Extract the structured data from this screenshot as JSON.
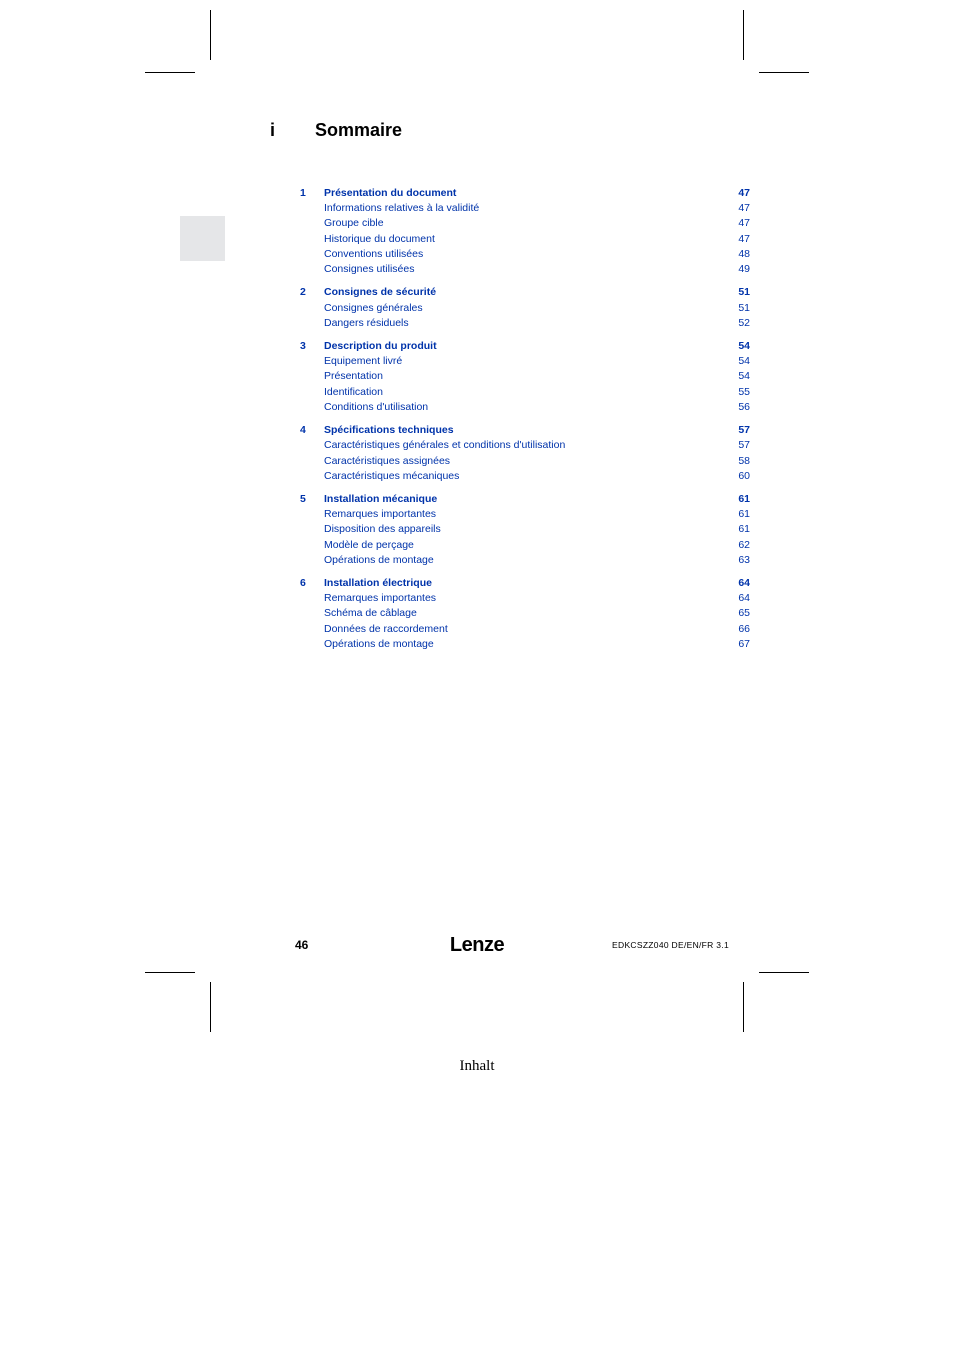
{
  "header": {
    "section_marker": "i",
    "title": "Sommaire"
  },
  "toc": [
    {
      "num": "1",
      "title": "Présentation du document",
      "page": "47",
      "items": [
        {
          "title": "Informations relatives à la validité",
          "page": "47"
        },
        {
          "title": "Groupe cible",
          "page": "47"
        },
        {
          "title": "Historique du document",
          "page": "47"
        },
        {
          "title": "Conventions utilisées",
          "page": "48"
        },
        {
          "title": "Consignes utilisées",
          "page": "49"
        }
      ]
    },
    {
      "num": "2",
      "title": "Consignes de sécurité",
      "page": "51",
      "items": [
        {
          "title": "Consignes générales",
          "page": "51"
        },
        {
          "title": "Dangers résiduels",
          "page": "52"
        }
      ]
    },
    {
      "num": "3",
      "title": "Description du produit",
      "page": "54",
      "items": [
        {
          "title": "Equipement livré",
          "page": "54"
        },
        {
          "title": "Présentation",
          "page": "54"
        },
        {
          "title": "Identification",
          "page": "55"
        },
        {
          "title": "Conditions d'utilisation",
          "page": "56"
        }
      ]
    },
    {
      "num": "4",
      "title": "Spécifications techniques",
      "page": "57",
      "items": [
        {
          "title": "Caractéristiques générales et conditions d'utilisation",
          "page": "57"
        },
        {
          "title": "Caractéristiques assignées",
          "page": "58"
        },
        {
          "title": "Caractéristiques mécaniques",
          "page": "60"
        }
      ]
    },
    {
      "num": "5",
      "title": "Installation mécanique",
      "page": "61",
      "items": [
        {
          "title": "Remarques importantes",
          "page": "61"
        },
        {
          "title": "Disposition des appareils",
          "page": "61"
        },
        {
          "title": "Modèle de perçage",
          "page": "62"
        },
        {
          "title": "Opérations de montage",
          "page": "63"
        }
      ]
    },
    {
      "num": "6",
      "title": "Installation électrique",
      "page": "64",
      "items": [
        {
          "title": "Remarques importantes",
          "page": "64"
        },
        {
          "title": "Schéma de câblage",
          "page": "65"
        },
        {
          "title": "Données de raccordement",
          "page": "66"
        },
        {
          "title": "Opérations de montage",
          "page": "67"
        }
      ]
    }
  ],
  "footer": {
    "page_number": "46",
    "brand": "Lenze",
    "doc_code": "EDKCSZZ040   DE/EN/FR   3.1"
  },
  "caption": "Inhalt",
  "colors": {
    "link": "#0033aa",
    "text": "#000000",
    "sidebar_box": "#e5e6e8",
    "background": "#ffffff"
  }
}
